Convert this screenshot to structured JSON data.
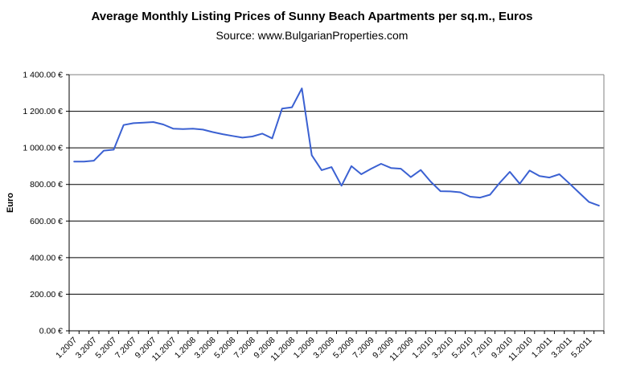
{
  "chart_data": {
    "type": "line",
    "title": "Average Monthly Listing Prices of Sunny Beach Apartments per sq.m., Euros",
    "subtitle": "Source: www.BulgarianProperties.com",
    "ylabel": "Euro",
    "ylim": [
      0,
      1400
    ],
    "ytick_step": 200,
    "y_tick_labels": [
      "0.00 €",
      "200.00 €",
      "400.00 €",
      "600.00 €",
      "800.00 €",
      "1 000.00 €",
      "1 200.00 €",
      "1 400.00 €"
    ],
    "x_label_every": 2,
    "grid": true,
    "legend_position": "none",
    "line_color": "#3B61D2",
    "plot_border_color": "#808080",
    "gridline_color": "#000000",
    "x": [
      "1.2007",
      "2.2007",
      "3.2007",
      "4.2007",
      "5.2007",
      "6.2007",
      "7.2007",
      "8.2007",
      "9.2007",
      "10.2007",
      "11.2007",
      "12.2007",
      "1.2008",
      "2.2008",
      "3.2008",
      "4.2008",
      "5.2008",
      "6.2008",
      "7.2008",
      "8.2008",
      "9.2008",
      "10.2008",
      "11.2008",
      "12.2008",
      "1.2009",
      "2.2009",
      "3.2009",
      "4.2009",
      "5.2009",
      "6.2009",
      "7.2009",
      "8.2009",
      "9.2009",
      "10.2009",
      "11.2009",
      "12.2009",
      "1.2010",
      "2.2010",
      "3.2010",
      "4.2010",
      "5.2010",
      "6.2010",
      "7.2010",
      "8.2010",
      "9.2010",
      "10.2010",
      "11.2010",
      "12.2010",
      "1.2011",
      "2.2011",
      "3.2011",
      "4.2011",
      "5.2011",
      "6.2011"
    ],
    "series": [
      {
        "values": [
          925,
          925,
          930,
          985,
          990,
          1125,
          1135,
          1138,
          1141,
          1128,
          1105,
          1103,
          1105,
          1100,
          1086,
          1075,
          1065,
          1056,
          1062,
          1078,
          1052,
          1215,
          1222,
          1325,
          960,
          878,
          895,
          793,
          900,
          856,
          886,
          913,
          890,
          886,
          840,
          879,
          816,
          763,
          762,
          757,
          733,
          728,
          744,
          810,
          869,
          804,
          876,
          846,
          838,
          856,
          806,
          755,
          704,
          684
        ]
      }
    ]
  }
}
